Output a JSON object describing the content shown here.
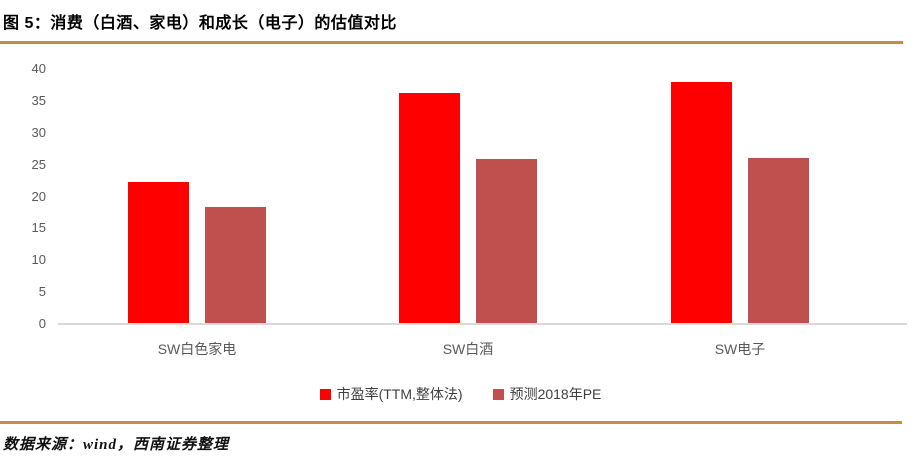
{
  "header": {
    "title": "图 5：消费（白酒、家电）和成长（电子）的估值对比"
  },
  "chart_data": {
    "type": "bar",
    "title": "消费（白酒、家电）和成长（电子）的估值对比",
    "categories": [
      "SW白色家电",
      "SW白酒",
      "SW电子"
    ],
    "series": [
      {
        "name": "市盈率(TTM,整体法)",
        "color": "#FF0000",
        "values": [
          22.3,
          36.2,
          37.9
        ]
      },
      {
        "name": "预测2018年PE",
        "color": "#C0504D",
        "values": [
          18.3,
          25.9,
          26.0
        ]
      }
    ],
    "xlabel": "",
    "ylabel": "",
    "ylim": [
      0,
      40
    ],
    "ytick_step": 5,
    "yticks": [
      0,
      5,
      10,
      15,
      20,
      25,
      30,
      35,
      40
    ],
    "grid": false,
    "legend_position": "bottom"
  },
  "footer": {
    "source": "数据来源：wind，西南证券整理"
  },
  "colors": {
    "accent_rule": "#C2913E",
    "series_red": "#FF0000",
    "series_dark_red": "#C0504D",
    "axis_line": "#D9D9D9",
    "tick_label": "#595959",
    "legend_text": "#3F3F3F"
  }
}
